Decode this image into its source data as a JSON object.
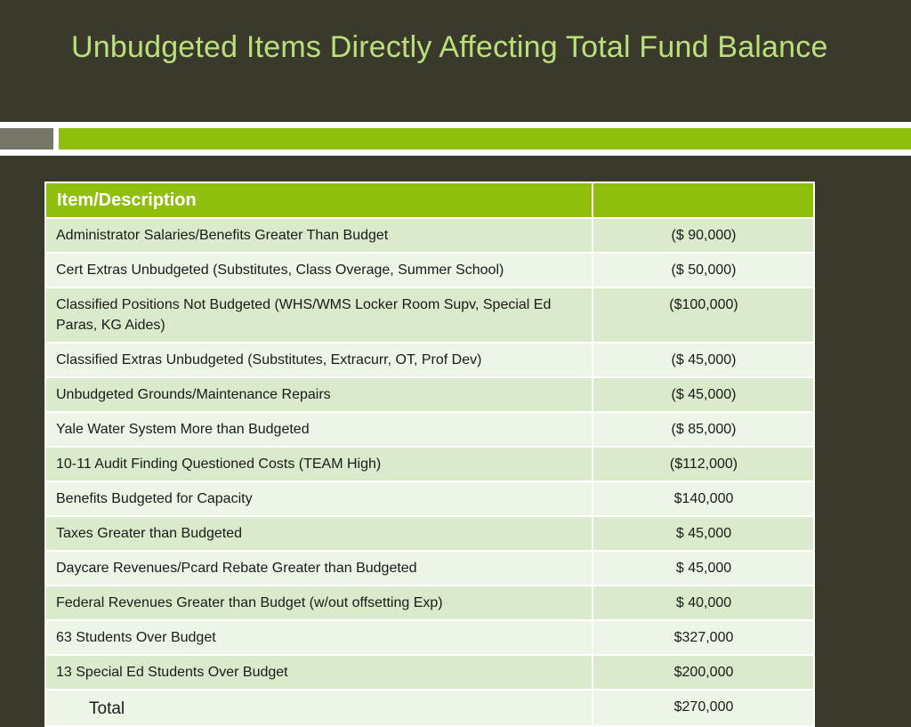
{
  "slide": {
    "title": "Unbudgeted Items Directly Affecting Total Fund Balance"
  },
  "table": {
    "headers": [
      "Item/Description",
      ""
    ],
    "rows": [
      {
        "item": "Administrator Salaries/Benefits Greater Than Budget",
        "amount": "($  90,000)"
      },
      {
        "item": "Cert Extras Unbudgeted (Substitutes, Class Overage, Summer School)",
        "amount": "($  50,000)"
      },
      {
        "item": "Classified Positions Not Budgeted (WHS/WMS Locker Room Supv, Special Ed Paras,  KG Aides)",
        "amount": "($100,000)"
      },
      {
        "item": "Classified Extras Unbudgeted (Substitutes, Extracurr, OT, Prof Dev)",
        "amount": "($  45,000)"
      },
      {
        "item": "Unbudgeted Grounds/Maintenance Repairs",
        "amount": "($  45,000)"
      },
      {
        "item": "Yale Water System More than Budgeted",
        "amount": "($  85,000)"
      },
      {
        "item": "10-11 Audit Finding Questioned Costs (TEAM High)",
        "amount": "($112,000)"
      },
      {
        "item": "Benefits Budgeted for Capacity",
        "amount": "$140,000"
      },
      {
        "item": "Taxes Greater than Budgeted",
        "amount": "$  45,000"
      },
      {
        "item": "Daycare Revenues/Pcard Rebate Greater than Budgeted",
        "amount": "$  45,000"
      },
      {
        "item": "Federal Revenues Greater than Budget (w/out offsetting Exp)",
        "amount": "$  40,000"
      },
      {
        "item": "63 Students Over Budget",
        "amount": "$327,000"
      },
      {
        "item": "13 Special Ed Students Over Budget",
        "amount": "$200,000"
      }
    ],
    "total": {
      "label": "Total",
      "amount": "$270,000"
    }
  },
  "colors": {
    "background": "#3b392c",
    "title": "#b9e07a",
    "accent_green": "#8fbf0c",
    "row_dark": "#d9ebca",
    "row_light": "#edf5e7"
  }
}
